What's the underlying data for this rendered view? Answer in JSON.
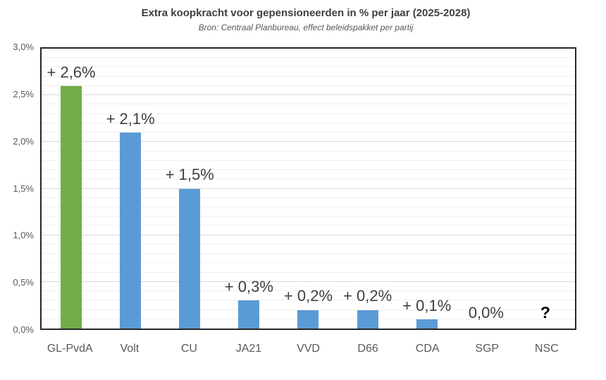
{
  "chart_data": {
    "type": "bar",
    "title": "Extra koopkracht voor gepensioneerden in % per jaar (2025-2028)",
    "subtitle": "Bron: Centraal Planbureau, effect beleidspakket per partij",
    "categories": [
      "GL-PvdA",
      "Volt",
      "CU",
      "JA21",
      "VVD",
      "D66",
      "CDA",
      "SGP",
      "NSC"
    ],
    "values": [
      2.6,
      2.1,
      1.5,
      0.3,
      0.2,
      0.2,
      0.1,
      0.0,
      null
    ],
    "data_labels": [
      "+ 2,6%",
      "+ 2,1%",
      "+ 1,5%",
      "+ 0,3%",
      "+ 0,2%",
      "+ 0,2%",
      "+ 0,1%",
      "0,0%",
      "?"
    ],
    "bar_colors": [
      "#70AD47",
      "#5B9BD5",
      "#5B9BD5",
      "#5B9BD5",
      "#5B9BD5",
      "#5B9BD5",
      "#5B9BD5",
      "#5B9BD5",
      "#5B9BD5"
    ],
    "y_ticks": [
      "3,0%",
      "2,5%",
      "2,0%",
      "1,5%",
      "1,0%",
      "0,5%",
      "0,0%"
    ],
    "ylim": [
      0,
      3.0
    ],
    "major_grid_step": 0.5,
    "minor_grid_step": 0.1,
    "grid": true,
    "legend": "none",
    "xlabel": "",
    "ylabel": ""
  },
  "style": {
    "highlight_color": "#70AD47",
    "default_bar_color": "#5B9BD5",
    "data_label_color": "#404040",
    "axis_label_color": "#595959",
    "title_color": "#404040",
    "major_grid_color": "#d9d9d9",
    "minor_grid_color": "#f0f0f0",
    "plot_border_color": "#262626",
    "question_mark_color": "#000000"
  }
}
